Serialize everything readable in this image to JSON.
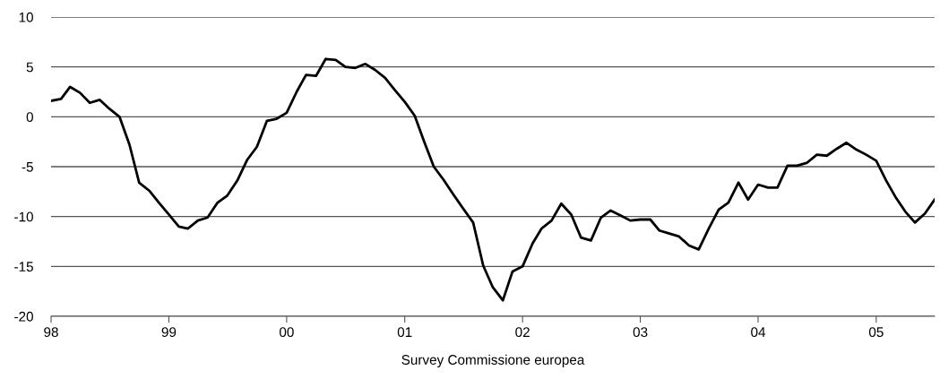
{
  "chart_data": {
    "type": "line",
    "xlabel": "Survey Commissione europea",
    "grid": "y",
    "legend": false,
    "marker": "none",
    "line_style": "solid",
    "ylim": [
      -20,
      10
    ],
    "yticks": [
      -20,
      -15,
      -10,
      -5,
      0,
      5,
      10
    ],
    "xlim": [
      "1998-01",
      "2005-07"
    ],
    "xticks": [
      {
        "value": "1998-01",
        "label": "98"
      },
      {
        "value": "1999-01",
        "label": "99"
      },
      {
        "value": "2000-01",
        "label": "00"
      },
      {
        "value": "2001-01",
        "label": "01"
      },
      {
        "value": "2002-01",
        "label": "02"
      },
      {
        "value": "2003-01",
        "label": "03"
      },
      {
        "value": "2004-01",
        "label": "04"
      },
      {
        "value": "2005-01",
        "label": "05"
      }
    ],
    "x": [
      "1998-01",
      "1998-02",
      "1998-03",
      "1998-04",
      "1998-05",
      "1998-06",
      "1998-07",
      "1998-08",
      "1998-09",
      "1998-10",
      "1998-11",
      "1998-12",
      "1999-01",
      "1999-02",
      "1999-03",
      "1999-04",
      "1999-05",
      "1999-06",
      "1999-07",
      "1999-08",
      "1999-09",
      "1999-10",
      "1999-11",
      "1999-12",
      "2000-01",
      "2000-02",
      "2000-03",
      "2000-04",
      "2000-05",
      "2000-06",
      "2000-07",
      "2000-08",
      "2000-09",
      "2000-10",
      "2000-11",
      "2000-12",
      "2001-01",
      "2001-02",
      "2001-03",
      "2001-04",
      "2001-05",
      "2001-06",
      "2001-07",
      "2001-08",
      "2001-09",
      "2001-10",
      "2001-11",
      "2001-12",
      "2002-01",
      "2002-02",
      "2002-03",
      "2002-04",
      "2002-05",
      "2002-06",
      "2002-07",
      "2002-08",
      "2002-09",
      "2002-10",
      "2002-11",
      "2002-12",
      "2003-01",
      "2003-02",
      "2003-03",
      "2003-04",
      "2003-05",
      "2003-06",
      "2003-07",
      "2003-08",
      "2003-09",
      "2003-10",
      "2003-11",
      "2003-12",
      "2004-01",
      "2004-02",
      "2004-03",
      "2004-04",
      "2004-05",
      "2004-06",
      "2004-07",
      "2004-08",
      "2004-09",
      "2004-10",
      "2004-11",
      "2004-12",
      "2005-01",
      "2005-02",
      "2005-03",
      "2005-04",
      "2005-05",
      "2005-06",
      "2005-07"
    ],
    "series": [
      {
        "color": "#000000",
        "values": [
          1.6,
          1.8,
          3.0,
          2.4,
          1.4,
          1.7,
          0.8,
          0.0,
          -2.8,
          -6.6,
          -7.4,
          -8.6,
          -9.8,
          -11.0,
          -11.2,
          -10.4,
          -10.1,
          -8.6,
          -7.9,
          -6.4,
          -4.3,
          -3.0,
          -0.4,
          -0.2,
          0.4,
          2.5,
          4.2,
          4.1,
          5.8,
          5.7,
          5.0,
          4.9,
          5.3,
          4.7,
          3.9,
          2.7,
          1.5,
          0.1,
          -2.4,
          -5.0,
          -6.3,
          -7.8,
          -9.2,
          -10.6,
          -14.9,
          -17.1,
          -18.4,
          -15.5,
          -15.0,
          -12.7,
          -11.2,
          -10.4,
          -8.7,
          -9.8,
          -12.1,
          -12.4,
          -10.1,
          -9.4,
          -9.9,
          -10.4,
          -10.3,
          -10.3,
          -11.4,
          -11.7,
          -12.0,
          -12.9,
          -13.3,
          -11.2,
          -9.3,
          -8.6,
          -6.6,
          -8.3,
          -6.8,
          -7.1,
          -7.1,
          -4.9,
          -4.9,
          -4.6,
          -3.8,
          -3.9,
          -3.2,
          -2.6,
          -3.3,
          -3.8,
          -4.4,
          -6.4,
          -8.0,
          -9.5,
          -10.6,
          -9.7,
          -8.3
        ]
      }
    ]
  }
}
